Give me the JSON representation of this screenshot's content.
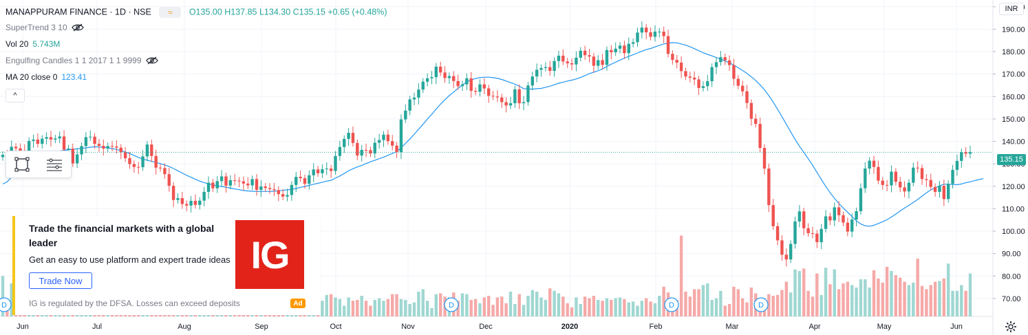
{
  "header": {
    "symbol": "MANAPPURAM FINANCE · 1D · NSE",
    "ohlc": "O135.00 H137.85 L134.30 C135.15 +0.65 (+0.48%)",
    "chip_icon": "≈"
  },
  "indicators": [
    {
      "label": "SuperTrend 3 10",
      "value": "",
      "icon": "eye-off-icon"
    },
    {
      "label": "Vol 20",
      "value": "5.743M"
    },
    {
      "label": "Engulfing Candles 1 1 2017 1 1 9999",
      "value": "",
      "icon": "eye-off-icon"
    },
    {
      "label": "MA 20 close 0",
      "value": "123.41"
    }
  ],
  "collapse_label": "^",
  "currency": "INR",
  "last_price": "135.15",
  "price_axis": [
    "200.00",
    "190.00",
    "180.00",
    "170.00",
    "160.00",
    "150.00",
    "140.00",
    "130.00",
    "120.00",
    "110.00",
    "100.00",
    "90.00",
    "80.00",
    "70.00"
  ],
  "time_axis": [
    "Jun",
    "Jul",
    "Aug",
    "Sep",
    "Oct",
    "Nov",
    "Dec",
    "2020",
    "Feb",
    "Mar",
    "Apr",
    "May",
    "Jun"
  ],
  "event_marker_label": "D",
  "ad": {
    "title": "Trade the financial markets with a global leader",
    "desc": "Get an easy to use platform and expert trade ideas",
    "button": "Trade Now",
    "note": "IG is regulated by the DFSA. Losses can exceed deposits",
    "logo": "IG",
    "badge": "Ad"
  },
  "colors": {
    "up": "#26a69a",
    "down": "#ef5350",
    "ma": "#2196f3",
    "vol_up": "#9fd7d1",
    "vol_down": "#f5a9a8"
  },
  "chart_data": {
    "type": "candlestick",
    "y_range": [
      62,
      203
    ],
    "closes": [
      134.0,
      133.2,
      137.6,
      136.9,
      135.9,
      134.3,
      140.2,
      140.8,
      138.9,
      141.2,
      141.9,
      140.8,
      141.3,
      142.2,
      136.3,
      136.8,
      130.2,
      134.2,
      137.9,
      141.9,
      142.1,
      138.9,
      138.0,
      136.8,
      137.9,
      137.7,
      137.2,
      135.2,
      132.5,
      129.9,
      128.6,
      128.5,
      133.3,
      138.6,
      133.5,
      128.3,
      128.1,
      125.4,
      120.2,
      113.9,
      114.7,
      112.1,
      111.4,
      113.5,
      111.7,
      113.6,
      117.5,
      121.6,
      119.1,
      122.3,
      124.4,
      120.3,
      122.7,
      122.5,
      122.2,
      121.2,
      120.4,
      123.2,
      118.4,
      119.9,
      119.2,
      118.7,
      118.3,
      116.5,
      115.4,
      116.1,
      120.6,
      124.2,
      123.6,
      121.1,
      124.9,
      127.5,
      125.8,
      127.6,
      127.9,
      126.8,
      133.5,
      137.5,
      141.1,
      143.8,
      139.3,
      133.7,
      136.2,
      136.1,
      134.6,
      139.4,
      140.6,
      143.0,
      140.1,
      138.1,
      135.2,
      149.8,
      153.7,
      158.7,
      159.5,
      163.1,
      166.6,
      168.1,
      168.6,
      173.3,
      170.7,
      168.2,
      169.1,
      166.9,
      164.6,
      165.4,
      168.1,
      162.5,
      162.1,
      165.4,
      163.6,
      160.3,
      160.0,
      159.6,
      157.5,
      156.0,
      157.0,
      163.2,
      157.0,
      157.5,
      164.9,
      168.9,
      171.9,
      172.7,
      173.1,
      171.4,
      175.8,
      178.2,
      175.6,
      174.8,
      174.3,
      177.3,
      180.4,
      178.4,
      177.8,
      173.7,
      176.2,
      174.1,
      180.7,
      179.7,
      181.3,
      182.7,
      179.3,
      183.5,
      184.2,
      188.5,
      190.7,
      188.6,
      186.6,
      188.9,
      188.9,
      186.9,
      179.0,
      176.3,
      175.1,
      171.3,
      168.9,
      168.4,
      167.6,
      163.8,
      164.6,
      166.8,
      173.1,
      175.3,
      177.5,
      176.1,
      174.0,
      167.9,
      164.8,
      162.3,
      157.1,
      150.1,
      147.8,
      137.1,
      127.9,
      111.6,
      102.2,
      95.9,
      89.5,
      87.4,
      94.3,
      104.3,
      108.8,
      101.3,
      99.1,
      98.9,
      95.1,
      101.0,
      106.6,
      104.8,
      110.6,
      107.1,
      103.8,
      99.8,
      105.2,
      108.9,
      119.1,
      127.9,
      131.4,
      128.6,
      122.5,
      120.6,
      120.4,
      126.5,
      122.0,
      119.5,
      117.7,
      121.6,
      128.3,
      128.1,
      123.2,
      122.8,
      119.7,
      117.5,
      120.2,
      114.3,
      121.1,
      127.3,
      131.3,
      135.2,
      134.5,
      135.2
    ],
    "ma20": [
      121.0,
      122.0,
      124.0,
      126.0,
      127.5,
      128.8,
      130.0,
      131.2,
      132.4,
      133.3,
      134.1,
      134.8,
      135.3,
      135.7,
      136.0,
      136.3,
      136.5,
      136.7,
      136.9,
      137.1,
      137.4,
      137.6,
      137.5,
      137.4,
      137.1,
      136.8,
      136.4,
      135.9,
      135.3,
      134.6,
      133.7,
      132.9,
      132.1,
      131.6,
      131.1,
      130.6,
      130.1,
      129.5,
      128.8,
      127.9,
      126.9,
      125.9,
      124.9,
      124.0,
      123.1,
      122.3,
      121.6,
      121.1,
      120.6,
      120.2,
      119.9,
      119.6,
      119.2,
      118.8,
      118.5,
      118.1,
      117.9,
      117.8,
      117.7,
      117.7,
      117.7,
      117.7,
      117.8,
      118.0,
      118.2,
      118.4,
      118.6,
      119.0,
      119.5,
      119.9,
      120.4,
      120.9,
      121.3,
      121.8,
      122.3,
      122.7,
      123.6,
      124.6,
      125.7,
      126.9,
      127.8,
      128.6,
      129.3,
      130.1,
      130.9,
      131.6,
      132.3,
      133.0,
      133.8,
      134.6,
      135.4,
      137.2,
      139.1,
      141.1,
      143.2,
      145.4,
      147.6,
      149.9,
      152.1,
      154.4,
      156.6,
      158.6,
      160.4,
      162.0,
      163.6,
      165.1,
      166.5,
      167.4,
      168.0,
      168.4,
      168.6,
      168.6,
      168.4,
      168.1,
      167.6,
      166.9,
      166.2,
      165.5,
      164.6,
      163.5,
      163.3,
      163.3,
      163.5,
      163.6,
      164.1,
      164.6,
      165.2,
      165.9,
      166.4,
      166.9,
      167.3,
      167.8,
      168.5,
      169.3,
      170.2,
      170.8,
      171.5,
      172.3,
      173.4,
      174.4,
      175.3,
      176.2,
      177.1,
      177.9,
      178.6,
      179.4,
      180.2,
      180.9,
      181.4,
      182.1,
      182.8,
      183.4,
      183.8,
      184.0,
      183.9,
      183.4,
      182.9,
      182.2,
      181.3,
      180.4,
      179.5,
      178.8,
      178.1,
      177.4,
      176.6,
      175.8,
      175.0,
      174.0,
      172.8,
      171.6,
      170.3,
      168.8,
      167.1,
      165.2,
      163.0,
      160.4,
      157.5,
      154.3,
      151.0,
      147.6,
      144.2,
      140.9,
      137.8,
      135.1,
      132.3,
      129.3,
      126.2,
      123.0,
      119.9,
      117.1,
      114.6,
      112.3,
      110.3,
      108.4,
      106.5,
      104.6,
      103.2,
      102.4,
      102.2,
      102.6,
      103.4,
      104.2,
      105.1,
      106.3,
      107.6,
      109.0,
      110.3,
      111.5,
      112.8,
      114.1,
      115.6,
      117.1,
      118.4,
      119.3,
      120.2,
      120.9,
      120.9,
      120.8,
      120.7,
      121.0,
      121.6,
      122.0,
      122.5,
      123.0,
      123.41
    ],
    "volume": [
      0.49,
      0.13,
      0.4,
      0.13,
      0.23,
      0.21,
      0.26,
      0.33,
      0.14,
      0.28,
      0.31,
      0.22,
      0.15,
      0.26,
      0.35,
      0.11,
      0.16,
      0.34,
      0.25,
      0.21,
      0.22,
      0.3,
      0.31,
      0.17,
      0.25,
      0.3,
      0.29,
      0.14,
      0.13,
      0.25,
      0.27,
      0.13,
      0.26,
      0.16,
      0.19,
      0.35,
      0.16,
      0.18,
      0.17,
      0.14,
      0.1,
      0.33,
      0.37,
      0.17,
      0.11,
      0.18,
      0.18,
      0.17,
      0.26,
      0.29,
      0.27,
      0.19,
      0.18,
      0.26,
      0.27,
      0.11,
      0.12,
      0.17,
      0.21,
      0.12,
      0.23,
      0.28,
      0.12,
      0.26,
      0.17,
      0.16,
      0.19,
      0.24,
      0.26,
      0.25,
      0.14,
      0.21,
      0.2,
      0.19,
      0.26,
      0.27,
      0.23,
      0.21,
      0.13,
      0.23,
      0.19,
      0.2,
      0.25,
      0.19,
      0.13,
      0.2,
      0.22,
      0.19,
      0.21,
      0.27,
      0.27,
      0.21,
      0.2,
      0.15,
      0.17,
      0.3,
      0.33,
      0.19,
      0.1,
      0.27,
      0.28,
      0.24,
      0.23,
      0.29,
      0.19,
      0.28,
      0.27,
      0.2,
      0.21,
      0.16,
      0.23,
      0.25,
      0.14,
      0.23,
      0.24,
      0.16,
      0.3,
      0.15,
      0.27,
      0.14,
      0.25,
      0.32,
      0.3,
      0.23,
      0.2,
      0.34,
      0.31,
      0.28,
      0.24,
      0.16,
      0.11,
      0.23,
      0.15,
      0.24,
      0.22,
      0.25,
      0.2,
      0.19,
      0.22,
      0.2,
      0.22,
      0.23,
      0.21,
      0.17,
      0.18,
      0.13,
      0.19,
      0.22,
      0.18,
      0.16,
      0.25,
      0.36,
      0.29,
      0.14,
      0.2,
      0.98,
      0.3,
      0.24,
      0.33,
      0.33,
      0.38,
      0.4,
      0.2,
      0.22,
      0.31,
      0.13,
      0.15,
      0.36,
      0.33,
      0.22,
      0.17,
      0.35,
      0.28,
      0.22,
      0.22,
      0.27,
      0.25,
      0.26,
      0.32,
      0.42,
      0.29,
      0.57,
      0.55,
      0.58,
      0.31,
      0.24,
      0.52,
      0.26,
      0.59,
      0.39,
      0.57,
      0.33,
      0.4,
      0.42,
      0.38,
      0.35,
      0.45,
      0.45,
      0.35,
      0.56,
      0.46,
      0.41,
      0.6,
      0.55,
      0.5,
      0.47,
      0.42,
      0.38,
      0.41,
      0.7,
      0.37,
      0.33,
      0.38,
      0.42,
      0.43,
      0.46,
      0.64,
      0.31,
      0.31,
      0.38,
      0.31,
      0.52,
      0.52,
      1.0,
      0.6,
      0.47,
      0.52,
      0.36,
      0.55,
      0.45,
      0.49,
      0.4,
      0.53,
      0.6,
      0.26,
      0.24,
      0.39,
      0.32
    ]
  }
}
